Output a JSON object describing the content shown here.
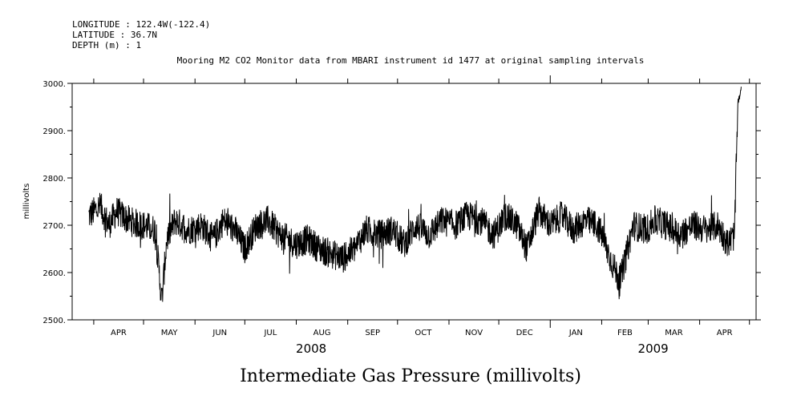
{
  "header": {
    "longitude": "LONGITUDE : 122.4W(-122.4)",
    "latitude": "LATITUDE : 36.7N",
    "depth": "DEPTH (m) : 1"
  },
  "chart_data": {
    "type": "line",
    "title": "Mooring M2 CO2 Monitor data from MBARI instrument id 1477 at original sampling intervals",
    "ylabel": "millivolts",
    "xlabel": "Intermediate Gas Pressure (millivolts)",
    "ylim": [
      2500,
      3000
    ],
    "yticks": [
      "2500.",
      "2600.",
      "2700.",
      "2800.",
      "2900.",
      "3000."
    ],
    "xlim": [
      "2008-03-19",
      "2009-05-05"
    ],
    "month_labels": [
      "APR",
      "MAY",
      "JUN",
      "JUL",
      "AUG",
      "SEP",
      "OCT",
      "NOV",
      "DEC",
      "JAN",
      "FEB",
      "MAR",
      "APR"
    ],
    "year_labels": [
      "2008",
      "2009"
    ],
    "line_color": "#000000",
    "series": [
      {
        "x": [
          "2008-03-29",
          "2008-04-05",
          "2008-04-10",
          "2008-04-15",
          "2008-04-20",
          "2008-04-25",
          "2008-05-01",
          "2008-05-08",
          "2008-05-12",
          "2008-05-15",
          "2008-05-20",
          "2008-05-28",
          "2008-06-05",
          "2008-06-12",
          "2008-06-18",
          "2008-06-25",
          "2008-07-01",
          "2008-07-08",
          "2008-07-15",
          "2008-07-22",
          "2008-08-01",
          "2008-08-08",
          "2008-08-15",
          "2008-08-22",
          "2008-08-29",
          "2008-09-05",
          "2008-09-12",
          "2008-09-20",
          "2008-09-28",
          "2008-10-05",
          "2008-10-12",
          "2008-10-20",
          "2008-10-28",
          "2008-11-05",
          "2008-11-12",
          "2008-11-20",
          "2008-11-28",
          "2008-12-05",
          "2008-12-12",
          "2008-12-18",
          "2008-12-25",
          "2009-01-01",
          "2009-01-08",
          "2009-01-15",
          "2009-01-22",
          "2009-01-29",
          "2009-02-01",
          "2009-02-05",
          "2009-02-12",
          "2009-02-20",
          "2009-02-28",
          "2009-03-05",
          "2009-03-12",
          "2009-03-20",
          "2009-03-28",
          "2009-04-05",
          "2009-04-12",
          "2009-04-18",
          "2009-04-22",
          "2009-04-24",
          "2009-04-26"
        ],
        "values": [
          2720,
          2740,
          2700,
          2730,
          2715,
          2705,
          2700,
          2690,
          2540,
          2670,
          2710,
          2690,
          2700,
          2670,
          2710,
          2690,
          2650,
          2700,
          2710,
          2680,
          2660,
          2670,
          2650,
          2640,
          2630,
          2650,
          2690,
          2680,
          2690,
          2660,
          2700,
          2680,
          2710,
          2700,
          2720,
          2710,
          2680,
          2720,
          2700,
          2650,
          2730,
          2700,
          2720,
          2690,
          2710,
          2700,
          2680,
          2640,
          2580,
          2700,
          2690,
          2710,
          2700,
          2680,
          2700,
          2690,
          2700,
          2660,
          2680,
          2960,
          2985
        ]
      }
    ]
  }
}
